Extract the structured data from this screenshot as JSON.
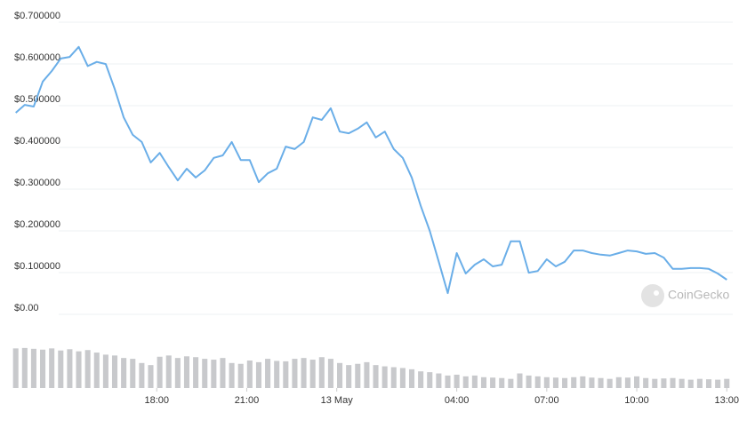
{
  "chart_data": {
    "type": "line",
    "x": [
      13.3,
      13.6,
      13.9,
      14.2,
      14.5,
      14.8,
      15.1,
      15.4,
      15.7,
      16.0,
      16.3,
      16.6,
      16.9,
      17.2,
      17.5,
      17.8,
      18.1,
      18.4,
      18.7,
      19.0,
      19.3,
      19.6,
      19.9,
      20.2,
      20.5,
      20.8,
      21.1,
      21.4,
      21.7,
      22.0,
      22.3,
      22.6,
      22.9,
      23.2,
      23.5,
      23.8,
      24.1,
      24.4,
      24.7,
      25.0,
      25.3,
      25.6,
      25.9,
      26.2,
      26.5,
      26.8,
      27.1,
      27.4,
      27.7,
      28.0,
      28.3,
      28.6,
      28.9,
      29.2,
      29.5,
      29.8,
      30.1,
      30.4,
      30.7,
      31.0,
      31.3,
      31.6,
      31.9,
      32.2,
      32.5,
      32.8,
      33.1,
      33.4,
      33.7,
      34.0,
      34.3,
      34.6,
      34.9,
      35.2,
      35.5,
      35.8,
      36.1,
      36.4,
      36.7,
      37.0
    ],
    "series": [
      {
        "name": "Price",
        "color": "#6aaee8",
        "values": [
          0.468,
          0.487,
          0.483,
          0.543,
          0.568,
          0.598,
          0.602,
          0.626,
          0.58,
          0.59,
          0.585,
          0.525,
          0.457,
          0.415,
          0.398,
          0.349,
          0.372,
          0.338,
          0.306,
          0.334,
          0.313,
          0.33,
          0.36,
          0.366,
          0.398,
          0.355,
          0.355,
          0.302,
          0.323,
          0.334,
          0.387,
          0.381,
          0.398,
          0.457,
          0.451,
          0.479,
          0.423,
          0.419,
          0.43,
          0.445,
          0.409,
          0.423,
          0.381,
          0.36,
          0.313,
          0.245,
          0.185,
          0.111,
          0.036,
          0.132,
          0.083,
          0.104,
          0.117,
          0.1,
          0.104,
          0.16,
          0.16,
          0.085,
          0.089,
          0.117,
          0.1,
          0.111,
          0.138,
          0.138,
          0.132,
          0.128,
          0.126,
          0.132,
          0.138,
          0.136,
          0.13,
          0.132,
          0.121,
          0.094,
          0.094,
          0.096,
          0.096,
          0.094,
          0.083,
          0.068
        ]
      },
      {
        "name": "Volume",
        "color": "#c8c9cc",
        "values": [
          95,
          96,
          94,
          92,
          95,
          90,
          93,
          88,
          91,
          85,
          80,
          78,
          72,
          70,
          60,
          55,
          75,
          78,
          72,
          76,
          74,
          70,
          68,
          72,
          60,
          58,
          66,
          62,
          70,
          65,
          64,
          70,
          72,
          68,
          74,
          70,
          60,
          55,
          58,
          62,
          55,
          52,
          50,
          48,
          45,
          40,
          38,
          35,
          30,
          32,
          28,
          30,
          26,
          25,
          24,
          22,
          35,
          30,
          28,
          26,
          25,
          24,
          26,
          28,
          25,
          24,
          22,
          26,
          25,
          28,
          24,
          22,
          23,
          24,
          22,
          20,
          22,
          21,
          20,
          22
        ]
      }
    ],
    "ylim": [
      0,
      0.7
    ],
    "yticks": [
      {
        "value": 0,
        "label": "$0.00"
      },
      {
        "value": 0.1,
        "label": "$0.100000"
      },
      {
        "value": 0.2,
        "label": "$0.200000"
      },
      {
        "value": 0.3,
        "label": "$0.300000"
      },
      {
        "value": 0.4,
        "label": "$0.400000"
      },
      {
        "value": 0.5,
        "label": "$0.500000"
      },
      {
        "value": 0.6,
        "label": "$0.600000"
      },
      {
        "value": 0.7,
        "label": "$0.700000"
      }
    ],
    "xlim": [
      13.25,
      37.2
    ],
    "xticks": [
      {
        "value": 18,
        "label": "18:00"
      },
      {
        "value": 21,
        "label": "21:00"
      },
      {
        "value": 24,
        "label": "13 May"
      },
      {
        "value": 28,
        "label": "04:00"
      },
      {
        "value": 31,
        "label": "07:00"
      },
      {
        "value": 34,
        "label": "10:00"
      },
      {
        "value": 37,
        "label": "13:00"
      }
    ],
    "volume_ylim": [
      0,
      100
    ],
    "grid": true,
    "watermark": "CoinGecko"
  }
}
